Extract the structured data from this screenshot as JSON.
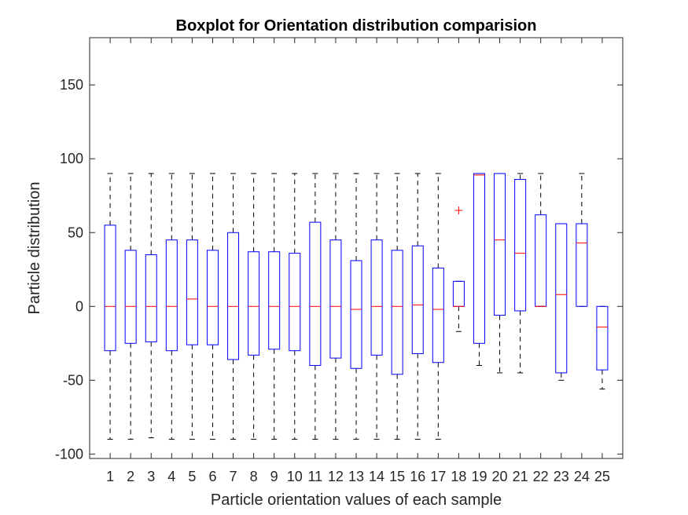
{
  "chart_data": {
    "type": "boxplot",
    "title": "Boxplot for Orientation distribution comparision",
    "xlabel": "Particle orientation values of each sample",
    "ylabel": "Particle distribution",
    "ylim": [
      -103,
      182
    ],
    "yticks": [
      -100,
      -50,
      0,
      50,
      100,
      150
    ],
    "categories": [
      "1",
      "2",
      "3",
      "4",
      "5",
      "6",
      "7",
      "8",
      "9",
      "10",
      "11",
      "12",
      "13",
      "14",
      "15",
      "16",
      "17",
      "18",
      "19",
      "20",
      "21",
      "22",
      "23",
      "24",
      "25"
    ],
    "boxes": [
      {
        "whisker_low": -90,
        "q1": -30,
        "median": 0,
        "q3": 55,
        "whisker_high": 90
      },
      {
        "whisker_low": -90,
        "q1": -25,
        "median": 0,
        "q3": 38,
        "whisker_high": 90
      },
      {
        "whisker_low": -89,
        "q1": -24,
        "median": 0,
        "q3": 35,
        "whisker_high": 90
      },
      {
        "whisker_low": -90,
        "q1": -30,
        "median": 0,
        "q3": 45,
        "whisker_high": 90
      },
      {
        "whisker_low": -90,
        "q1": -26,
        "median": 5,
        "q3": 45,
        "whisker_high": 90
      },
      {
        "whisker_low": -90,
        "q1": -26,
        "median": 0,
        "q3": 38,
        "whisker_high": 90
      },
      {
        "whisker_low": -90,
        "q1": -36,
        "median": 0,
        "q3": 50,
        "whisker_high": 90
      },
      {
        "whisker_low": -90,
        "q1": -33,
        "median": 0,
        "q3": 37,
        "whisker_high": 90
      },
      {
        "whisker_low": -90,
        "q1": -29,
        "median": 0,
        "q3": 37,
        "whisker_high": 90
      },
      {
        "whisker_low": -90,
        "q1": -30,
        "median": 0,
        "q3": 36,
        "whisker_high": 90
      },
      {
        "whisker_low": -90,
        "q1": -40,
        "median": 0,
        "q3": 57,
        "whisker_high": 90
      },
      {
        "whisker_low": -90,
        "q1": -35,
        "median": 0,
        "q3": 45,
        "whisker_high": 90
      },
      {
        "whisker_low": -90,
        "q1": -42,
        "median": -2,
        "q3": 31,
        "whisker_high": 90
      },
      {
        "whisker_low": -90,
        "q1": -33,
        "median": 0,
        "q3": 45,
        "whisker_high": 90
      },
      {
        "whisker_low": -90,
        "q1": -46,
        "median": 0,
        "q3": 38,
        "whisker_high": 90
      },
      {
        "whisker_low": -90,
        "q1": -32,
        "median": 1,
        "q3": 41,
        "whisker_high": 90
      },
      {
        "whisker_low": -90,
        "q1": -38,
        "median": -2,
        "q3": 26,
        "whisker_high": 90
      },
      {
        "whisker_low": -17,
        "q1": 0,
        "median": 0,
        "q3": 17,
        "whisker_high": 17,
        "outliers": [
          65
        ]
      },
      {
        "whisker_low": -40,
        "q1": -25,
        "median": 89,
        "q3": 90,
        "whisker_high": 90
      },
      {
        "whisker_low": -45,
        "q1": -6,
        "median": 45,
        "q3": 90,
        "whisker_high": 90
      },
      {
        "whisker_low": -45,
        "q1": -3,
        "median": 36,
        "q3": 86,
        "whisker_high": 90
      },
      {
        "whisker_low": 0,
        "q1": 0,
        "median": 0,
        "q3": 62,
        "whisker_high": 90
      },
      {
        "whisker_low": -50,
        "q1": -45,
        "median": 8,
        "q3": 56,
        "whisker_high": 56
      },
      {
        "whisker_low": 0,
        "q1": 0,
        "median": 43,
        "q3": 56,
        "whisker_high": 90
      },
      {
        "whisker_low": -56,
        "q1": -43,
        "median": -14,
        "q3": 0,
        "whisker_high": 0
      }
    ],
    "colors": {
      "box": "#0000ff",
      "median": "#ff0000",
      "whisker": "#000000",
      "outlier": "#ff0000",
      "axis": "#262626"
    },
    "grid": false,
    "legend": "none"
  }
}
